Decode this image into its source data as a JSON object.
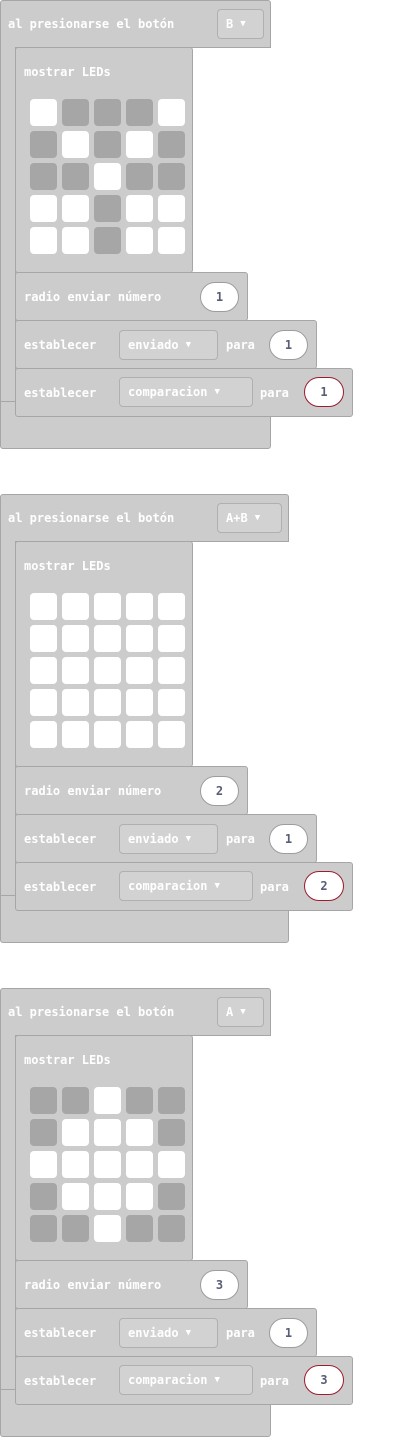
{
  "event_label": "al presionarse el botón",
  "show_leds_label": "mostrar LEDs",
  "radio_send_label": "radio enviar número",
  "set_label": "establecer",
  "to_label": "para",
  "events": [
    {
      "button": "B",
      "leds": [
        [
          1,
          0,
          0,
          0,
          1
        ],
        [
          0,
          1,
          0,
          1,
          0
        ],
        [
          0,
          0,
          1,
          0,
          0
        ],
        [
          1,
          1,
          0,
          1,
          1
        ],
        [
          1,
          1,
          0,
          1,
          1
        ]
      ],
      "radio_number": "1",
      "set1": {
        "variable": "enviado",
        "value": "1"
      },
      "set2": {
        "variable": "comparacion",
        "value": "1"
      }
    },
    {
      "button": "A+B",
      "leds": [
        [
          1,
          1,
          1,
          1,
          1
        ],
        [
          1,
          1,
          1,
          1,
          1
        ],
        [
          1,
          1,
          1,
          1,
          1
        ],
        [
          1,
          1,
          1,
          1,
          1
        ],
        [
          1,
          1,
          1,
          1,
          1
        ]
      ],
      "radio_number": "2",
      "set1": {
        "variable": "enviado",
        "value": "1"
      },
      "set2": {
        "variable": "comparacion",
        "value": "2"
      }
    },
    {
      "button": "A",
      "leds": [
        [
          0,
          0,
          1,
          0,
          0
        ],
        [
          0,
          1,
          1,
          1,
          0
        ],
        [
          1,
          1,
          1,
          1,
          1
        ],
        [
          0,
          1,
          1,
          1,
          0
        ],
        [
          0,
          0,
          1,
          0,
          0
        ]
      ],
      "radio_number": "3",
      "set1": {
        "variable": "enviado",
        "value": "1"
      },
      "set2": {
        "variable": "comparacion",
        "value": "3"
      }
    }
  ],
  "colors": {
    "block": "#cccccc",
    "block_border": "#a6a6a6",
    "led_on": "#ffffff",
    "led_off": "#a6a6a6",
    "selected_outline": "#9b1c2c"
  }
}
